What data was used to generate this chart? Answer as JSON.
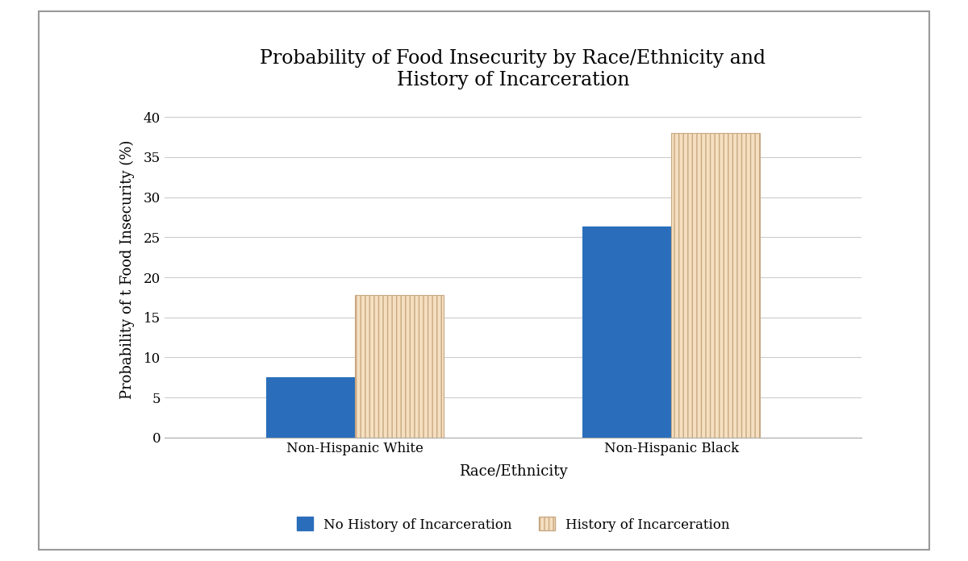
{
  "title": "Probability of Food Insecurity by Race/Ethnicity and\nHistory of Incarceration",
  "xlabel": "Race/Ethnicity",
  "ylabel": "Probability of t Food Insecurity (%)",
  "categories": [
    "Non-Hispanic White",
    "Non-Hispanic Black"
  ],
  "no_history_values": [
    7.5,
    26.3
  ],
  "history_values": [
    17.8,
    38.0
  ],
  "no_history_color": "#2a6ebb",
  "history_color_face": "#f5dfc0",
  "history_color_edge": "#c8a882",
  "ylim": [
    0,
    42
  ],
  "yticks": [
    0,
    5,
    10,
    15,
    20,
    25,
    30,
    35,
    40
  ],
  "bar_width": 0.28,
  "legend_no_history": "No History of Incarceration",
  "legend_history": "History of Incarceration",
  "background_color": "#ffffff",
  "grid_color": "#cccccc",
  "title_fontsize": 17,
  "axis_fontsize": 13,
  "tick_fontsize": 12,
  "legend_fontsize": 12,
  "border_color": "#999999"
}
